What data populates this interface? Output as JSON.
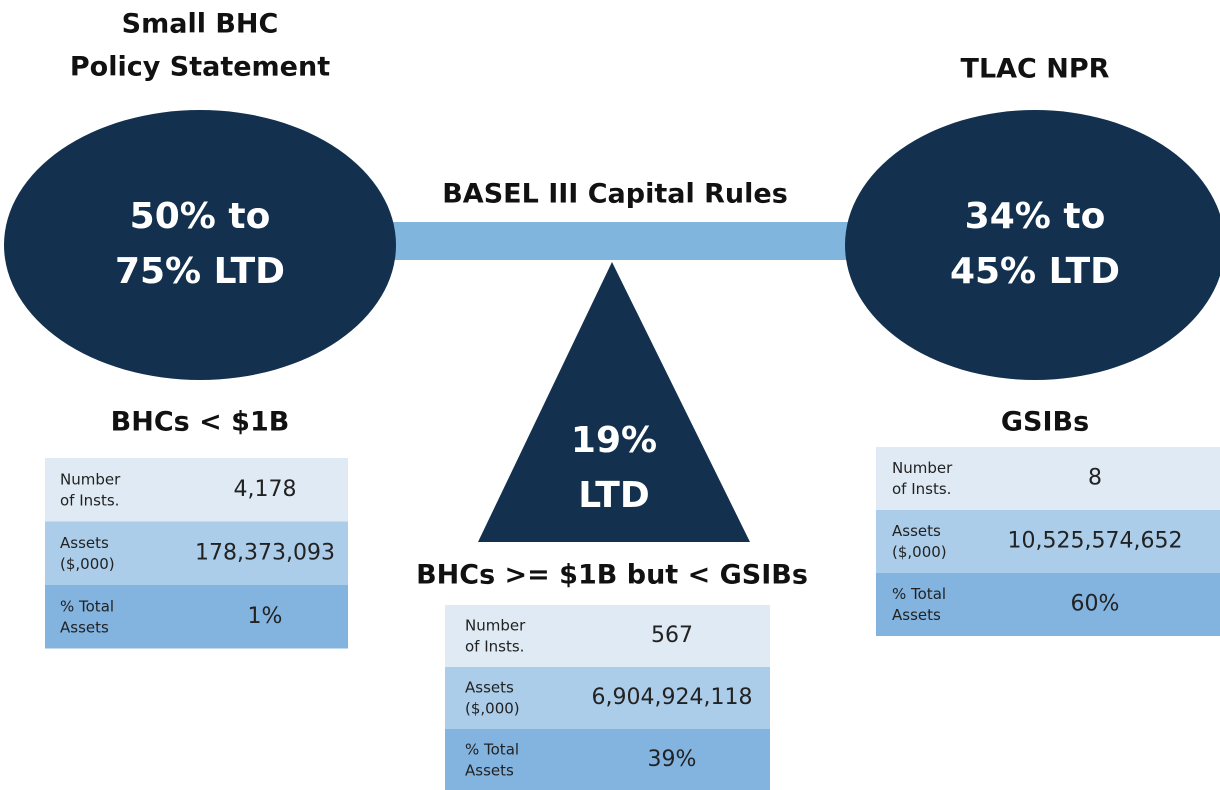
{
  "left": {
    "title": [
      "Small BHC",
      "Policy Statement"
    ],
    "shape_text": [
      "50% to",
      "75% LTD"
    ],
    "group_label": "BHCs < $1B",
    "table": [
      {
        "label": [
          "Number",
          "of Insts."
        ],
        "value": "4,178"
      },
      {
        "label": [
          "Assets",
          "($,000)"
        ],
        "value": "178,373,093"
      },
      {
        "label": [
          "% Total",
          "Assets"
        ],
        "value": "1%"
      }
    ]
  },
  "center": {
    "title": "BASEL III Capital Rules",
    "shape_text": [
      "19%",
      "LTD"
    ],
    "group_label": "BHCs >= $1B but < GSIBs",
    "table": [
      {
        "label": [
          "Number",
          "of Insts."
        ],
        "value": "567"
      },
      {
        "label": [
          "Assets",
          "($,000)"
        ],
        "value": "6,904,924,118"
      },
      {
        "label": [
          "% Total",
          "Assets"
        ],
        "value": "39%"
      }
    ]
  },
  "right": {
    "title": "TLAC NPR",
    "shape_text": [
      "34% to",
      "45% LTD"
    ],
    "group_label": "GSIBs",
    "table": [
      {
        "label": [
          "Number",
          "of Insts."
        ],
        "value": "8"
      },
      {
        "label": [
          "Assets",
          "($,000)"
        ],
        "value": "10,525,574,652"
      },
      {
        "label": [
          "% Total",
          "Assets"
        ],
        "value": "60%"
      }
    ]
  }
}
